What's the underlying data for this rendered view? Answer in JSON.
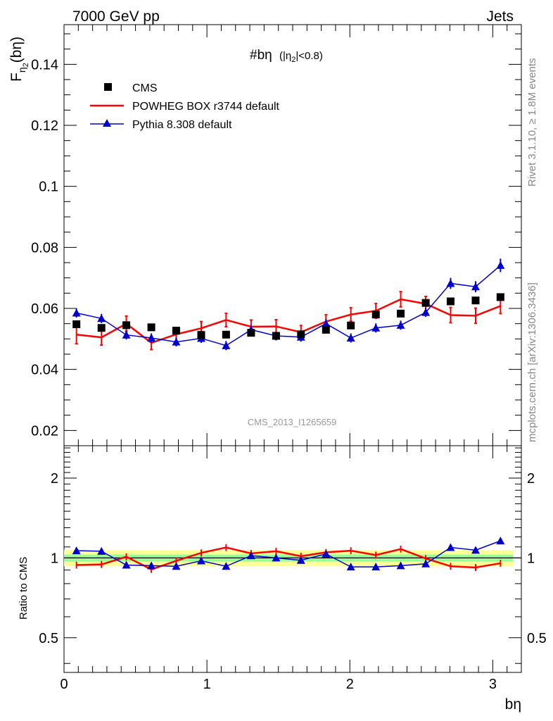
{
  "header": {
    "energy_label": "7000 GeV pp",
    "process_label": "Jets",
    "plot_title": "#bη",
    "plot_title_cut": "(|η",
    "plot_title_cut_sub": "2",
    "plot_title_cut_end": "|<0.8)",
    "ylabel_main": "F",
    "ylabel_sub": "η",
    "ylabel_subsub": "2",
    "ylabel_arg": "(bη)",
    "ylabel_ratio": "Ratio to CMS",
    "xlabel": "bη",
    "watermark": "CMS_2013_I1265659",
    "side_text_top": "Rivet 3.1.10, ≥ 1.8M events",
    "side_text_bottom": "mcplots.cern.ch [arXiv:1306.3436]"
  },
  "legend": [
    {
      "label": "CMS",
      "color": "#000000",
      "marker": "square"
    },
    {
      "label": "POWHEG BOX r3744 default",
      "color": "#ff0000",
      "marker": "line"
    },
    {
      "label": "Pythia 8.308 default",
      "color": "#0000cc",
      "marker": "triangle"
    }
  ],
  "axes": {
    "main_yticks": [
      "0.02",
      "0.04",
      "0.06",
      "0.08",
      "0.1",
      "0.12",
      "0.14"
    ],
    "ratio_yticks": [
      "0.5",
      "1",
      "2"
    ],
    "xticks": [
      "0",
      "1",
      "2",
      "3"
    ]
  },
  "chart_data": [
    {
      "type": "scatter",
      "panel": "main",
      "xlim": [
        0,
        3.2
      ],
      "ylim": [
        0.015,
        0.153
      ],
      "x": [
        0.087,
        0.262,
        0.436,
        0.611,
        0.785,
        0.96,
        1.134,
        1.309,
        1.484,
        1.658,
        1.833,
        2.007,
        2.182,
        2.356,
        2.531,
        2.705,
        2.88,
        3.054
      ],
      "series": [
        {
          "name": "CMS",
          "color": "#000000",
          "values": [
            0.0548,
            0.0536,
            0.0545,
            0.0538,
            0.0527,
            0.0513,
            0.0514,
            0.052,
            0.051,
            0.0515,
            0.053,
            0.0544,
            0.058,
            0.0583,
            0.0618,
            0.0623,
            0.0626,
            0.0637
          ]
        },
        {
          "name": "POWHEG BOX r3744 default",
          "color": "#ff0000",
          "values": [
            0.0514,
            0.0505,
            0.055,
            0.0487,
            0.0515,
            0.0535,
            0.0562,
            0.054,
            0.0541,
            0.0522,
            0.0557,
            0.058,
            0.0592,
            0.063,
            0.0615,
            0.0578,
            0.0576,
            0.0608
          ],
          "errors": [
            0.003,
            0.0025,
            0.0025,
            0.0022,
            0.0022,
            0.0022,
            0.0022,
            0.0022,
            0.0022,
            0.0022,
            0.0022,
            0.0022,
            0.0024,
            0.0025,
            0.0024,
            0.0025,
            0.0025,
            0.0025
          ]
        },
        {
          "name": "Pythia 8.308 default",
          "color": "#0000cc",
          "values": [
            0.0585,
            0.0567,
            0.0513,
            0.0503,
            0.049,
            0.0502,
            0.0478,
            0.053,
            0.051,
            0.0506,
            0.055,
            0.0503,
            0.0536,
            0.0545,
            0.0587,
            0.0682,
            0.0671,
            0.0741
          ],
          "errors": [
            0.0015,
            0.0015,
            0.0015,
            0.0015,
            0.0015,
            0.0015,
            0.0015,
            0.0015,
            0.0015,
            0.0015,
            0.0015,
            0.0015,
            0.0015,
            0.0015,
            0.0015,
            0.0018,
            0.0018,
            0.0022
          ]
        }
      ]
    },
    {
      "type": "line",
      "panel": "ratio",
      "ylabel": "Ratio to CMS",
      "xlabel": "bη",
      "yscale": "log",
      "xlim": [
        0,
        3.2
      ],
      "ylim": [
        0.37,
        2.65
      ],
      "x": [
        0.087,
        0.262,
        0.436,
        0.611,
        0.785,
        0.96,
        1.134,
        1.309,
        1.484,
        1.658,
        1.833,
        2.007,
        2.182,
        2.356,
        2.531,
        2.705,
        2.88,
        3.054
      ],
      "band_inner": 0.03,
      "band_outer": 0.07,
      "series": [
        {
          "name": "POWHEG BOX r3744 default",
          "color": "#ff0000",
          "values": [
            0.94,
            0.945,
            1.01,
            0.905,
            0.975,
            1.045,
            1.095,
            1.04,
            1.06,
            1.015,
            1.05,
            1.065,
            1.025,
            1.08,
            0.995,
            0.93,
            0.92,
            0.955
          ]
        },
        {
          "name": "Pythia 8.308 default",
          "color": "#0000cc",
          "values": [
            1.065,
            1.06,
            0.94,
            0.935,
            0.93,
            0.975,
            0.93,
            1.02,
            1.0,
            0.98,
            1.035,
            0.925,
            0.925,
            0.935,
            0.95,
            1.095,
            1.07,
            1.16
          ]
        }
      ]
    }
  ]
}
